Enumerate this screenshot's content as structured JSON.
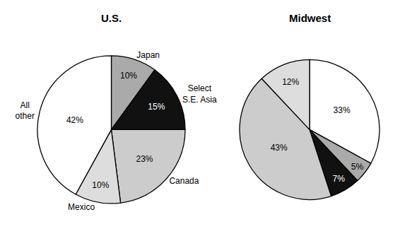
{
  "chart_data": [
    {
      "type": "pie",
      "title": "U.S.",
      "categories": [
        "Japan",
        "Select\nS.E. Asia",
        "Canada",
        "Mexico",
        "All\nother"
      ],
      "values": [
        10,
        15,
        23,
        10,
        42
      ],
      "value_labels": [
        "10%",
        "15%",
        "23%",
        "10%",
        "42%"
      ],
      "colors": [
        "#aaaaaa",
        "#111111",
        "#cccccc",
        "#dddddd",
        "#ffffff"
      ],
      "data_labels": true
    },
    {
      "type": "pie",
      "title": "Midwest",
      "values": [
        33,
        5,
        7,
        43,
        12
      ],
      "value_labels": [
        "33%",
        "5%",
        "7%",
        "43%",
        "12%"
      ],
      "colors": [
        "#ffffff",
        "#aaaaaa",
        "#111111",
        "#cccccc",
        "#dddddd"
      ],
      "data_labels": true
    }
  ]
}
